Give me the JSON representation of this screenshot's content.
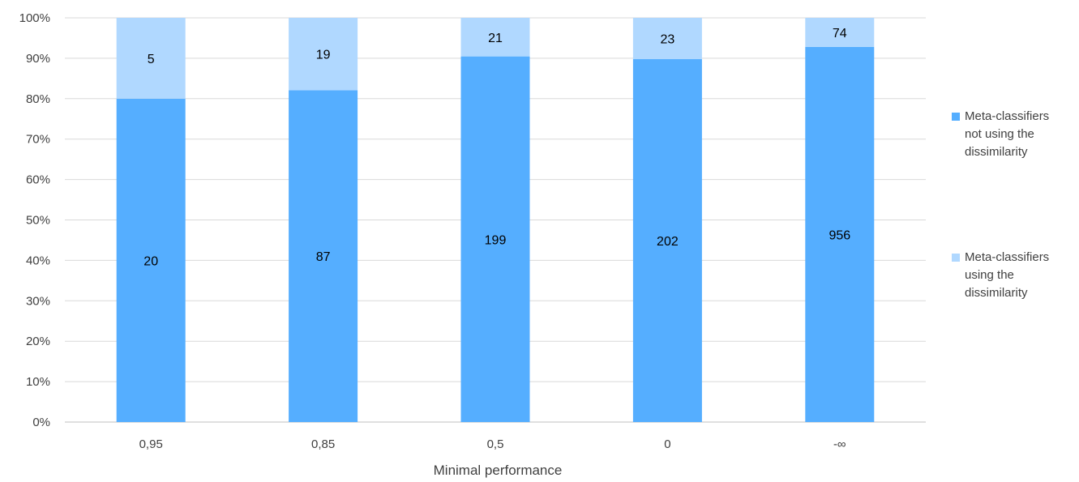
{
  "chart_data": {
    "type": "bar",
    "stacked": "percent",
    "xlabel": "Minimal performance",
    "ylabel": "",
    "ylim": [
      0,
      100
    ],
    "y_ticks": [
      "0%",
      "10%",
      "20%",
      "30%",
      "40%",
      "50%",
      "60%",
      "70%",
      "80%",
      "90%",
      "100%"
    ],
    "categories": [
      "0,95",
      "0,85",
      "0,5",
      "0",
      "-∞"
    ],
    "series": [
      {
        "name": "Meta-classifiers not using the dissimilarity",
        "values": [
          20,
          87,
          199,
          202,
          956
        ],
        "color": "#55AEFF"
      },
      {
        "name": "Meta-classifiers using the dissimilarity",
        "values": [
          5,
          19,
          21,
          23,
          74
        ],
        "color": "#B0D8FF"
      }
    ],
    "grid": true,
    "legend_position": "right"
  },
  "legend": {
    "items": [
      {
        "label": "Meta-classifiers\nnot using the\ndissimilarity",
        "color": "#55AEFF"
      },
      {
        "label": "Meta-classifiers\nusing the\ndissimilarity",
        "color": "#B0D8FF"
      }
    ]
  }
}
